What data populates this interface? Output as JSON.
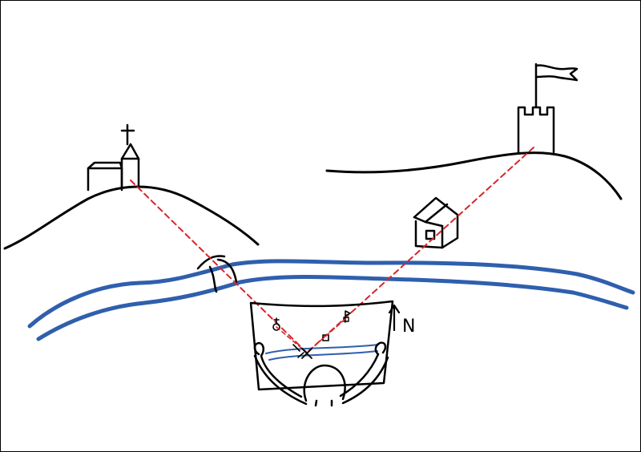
{
  "diagram": {
    "north_label": "N",
    "colors": {
      "ink": "#000000",
      "river": "#2f5fad",
      "sightline": "#d6262b",
      "background": "#ffffff"
    },
    "icons": [
      "church-icon",
      "tower-with-flag-icon",
      "house-icon",
      "bridge-icon",
      "map-holder-icon",
      "north-arrow-icon"
    ]
  }
}
